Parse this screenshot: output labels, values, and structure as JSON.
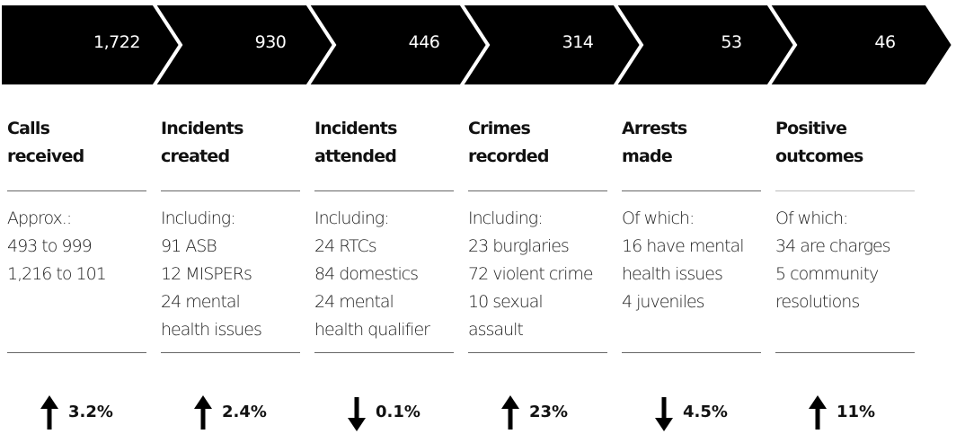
{
  "stages": [
    {
      "count": "1,722",
      "title": [
        "Calls",
        "received"
      ],
      "details": [
        "Approx.:",
        "493 to 999",
        "1,216 to 101"
      ],
      "change": "3.2%",
      "direction": "up"
    },
    {
      "count": "930",
      "title": [
        "Incidents",
        "created"
      ],
      "details": [
        "Including:",
        "91 ASB",
        "12 MISPERs",
        "24 mental",
        "health issues"
      ],
      "change": "2.4%",
      "direction": "up"
    },
    {
      "count": "446",
      "title": [
        "Incidents",
        "attended"
      ],
      "details": [
        "Including:",
        "24 RTCs",
        "84 domestics",
        "24 mental",
        "health qualifier"
      ],
      "change": "0.1%",
      "direction": "down"
    },
    {
      "count": "314",
      "title": [
        "Crimes",
        "recorded"
      ],
      "details": [
        "Including:",
        "23 burglaries",
        "72 violent crime",
        "10 sexual",
        "assault"
      ],
      "change": "23%",
      "direction": "up"
    },
    {
      "count": "53",
      "title": [
        "Arrests",
        "made"
      ],
      "details": [
        "Of which:",
        "16 have mental",
        "health issues",
        "4 juveniles"
      ],
      "change": "4.5%",
      "direction": "down"
    },
    {
      "count": "46",
      "title": [
        "Positive",
        "outcomes"
      ],
      "details": [
        "Of which:",
        "34 are charges",
        "5 community",
        "resolutions"
      ],
      "change": "11%",
      "direction": "up"
    }
  ]
}
